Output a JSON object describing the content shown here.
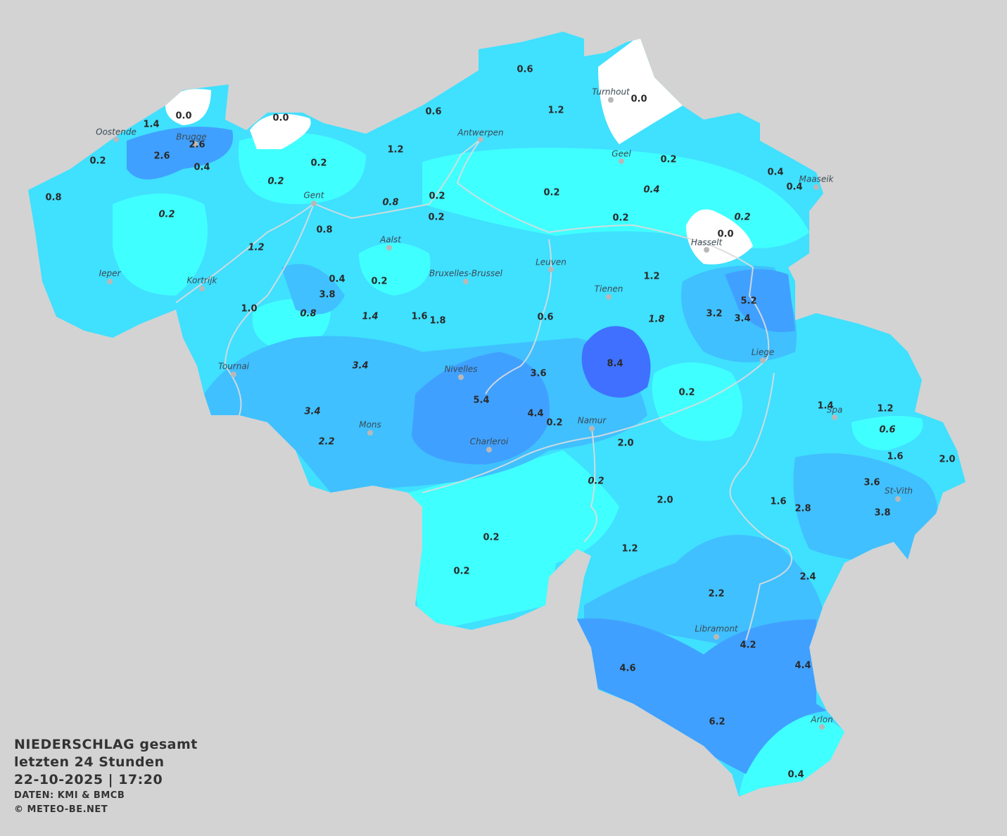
{
  "legend": {
    "title": "NIEDERSCHLAG gesamt",
    "period": "letzten 24 Stunden",
    "datetime": "22-10-2025  |  17:20",
    "source": "DATEN: KMI & BMCB",
    "copyright": "© METEO-BE.NET"
  },
  "colors": {
    "background": "#d3d3d3",
    "none": "#ffffff",
    "very_low": "#40ffff",
    "low": "#40e0ff",
    "medium": "#40c0ff",
    "high": "#40a0ff",
    "very_high": "#4070ff"
  },
  "cities": [
    "Turnhout",
    "Oostende",
    "Brugge",
    "Antwerpen",
    "Gent",
    "Aalst",
    "Geel",
    "Maaseik",
    "Hasselt",
    "Leuven",
    "Ieper",
    "Kortrijk",
    "Bruxelles-Brussel",
    "Tienen",
    "Liege",
    "Tournai",
    "Nivelles",
    "Spa",
    "Namur",
    "Mons",
    "Charleroi",
    "St-Vith",
    "Libramont",
    "Arlon"
  ],
  "values": [
    "0.6",
    "1.2",
    "0.0",
    "0.0",
    "1.4",
    "2.6",
    "2.6",
    "0.2",
    "0.4",
    "0.8",
    "0.2",
    "0.0",
    "0.6",
    "1.2",
    "0.2",
    "0.2",
    "0.8",
    "0.2",
    "0.2",
    "0.8",
    "1.2",
    "0.2",
    "0.2",
    "0.4",
    "0.4",
    "0.4",
    "0.2",
    "0.2",
    "0.0",
    "0.4",
    "0.2",
    "1.2",
    "3.8",
    "5.2",
    "1.0",
    "0.8",
    "1.4",
    "1.6",
    "1.8",
    "0.6",
    "1.8",
    "3.2",
    "3.4",
    "3.4",
    "3.6",
    "8.4",
    "0.2",
    "5.4",
    "1.4",
    "1.2",
    "3.4",
    "4.4",
    "0.2",
    "0.6",
    "2.2",
    "2.0",
    "1.6",
    "2.0",
    "0.2",
    "3.6",
    "2.0",
    "1.6",
    "2.8",
    "3.8",
    "0.2",
    "1.2",
    "0.2",
    "2.4",
    "2.2",
    "4.2",
    "4.4",
    "4.6",
    "6.2",
    "0.4"
  ]
}
